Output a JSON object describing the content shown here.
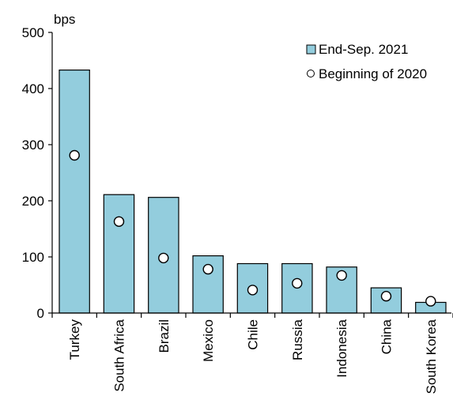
{
  "chart_data": {
    "type": "bar",
    "title": "",
    "unit_label": "bps",
    "xlabel": "",
    "ylabel": "",
    "ylim": [
      0,
      500
    ],
    "yticks": [
      0,
      100,
      200,
      300,
      400,
      500
    ],
    "grid": false,
    "legend_position": "top-right",
    "categories": [
      "Turkey",
      "South Africa",
      "Brazil",
      "Mexico",
      "Chile",
      "Russia",
      "Indonesia",
      "China",
      "South Korea"
    ],
    "series": [
      {
        "name": "End-Sep. 2021",
        "type": "bar",
        "color": "#93cddd",
        "values": [
          433,
          211,
          206,
          102,
          88,
          88,
          82,
          45,
          19
        ]
      },
      {
        "name": "Beginning of 2020",
        "type": "scatter",
        "color": "#ffffff",
        "values": [
          281,
          163,
          98,
          78,
          41,
          53,
          67,
          30,
          21
        ]
      }
    ]
  }
}
